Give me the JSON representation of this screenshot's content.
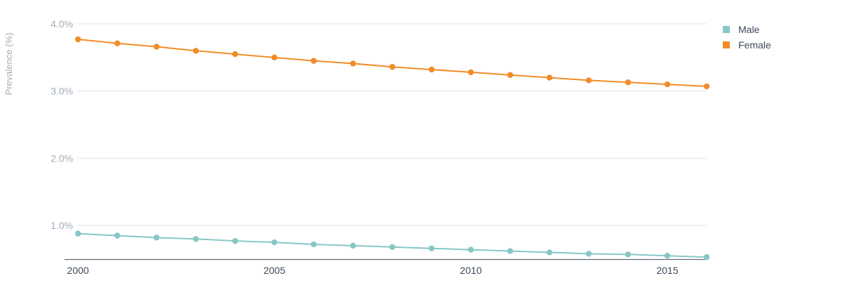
{
  "chart_data": {
    "type": "line",
    "ylabel": "Prevalence (%)",
    "ylim": [
      0.5,
      4.0
    ],
    "yticks": [
      {
        "value": 1.0,
        "label": "1.0%"
      },
      {
        "value": 2.0,
        "label": "2.0%"
      },
      {
        "value": 3.0,
        "label": "3.0%"
      },
      {
        "value": 4.0,
        "label": "4.0%"
      }
    ],
    "xlim": [
      2000,
      2016
    ],
    "xticks": [
      {
        "value": 2000,
        "label": "2000"
      },
      {
        "value": 2005,
        "label": "2005"
      },
      {
        "value": 2010,
        "label": "2010"
      },
      {
        "value": 2015,
        "label": "2015"
      }
    ],
    "grid": true,
    "legend_position": "top-right",
    "x": [
      2000,
      2001,
      2002,
      2003,
      2004,
      2005,
      2006,
      2007,
      2008,
      2009,
      2010,
      2011,
      2012,
      2013,
      2014,
      2015,
      2016
    ],
    "series": [
      {
        "name": "Male",
        "color": "#86c7c6",
        "values": [
          0.88,
          0.85,
          0.82,
          0.8,
          0.77,
          0.75,
          0.72,
          0.7,
          0.68,
          0.66,
          0.64,
          0.62,
          0.6,
          0.58,
          0.57,
          0.55,
          0.53
        ]
      },
      {
        "name": "Female",
        "color": "#f28c28",
        "values": [
          3.77,
          3.71,
          3.66,
          3.6,
          3.55,
          3.5,
          3.45,
          3.41,
          3.36,
          3.32,
          3.28,
          3.24,
          3.2,
          3.16,
          3.13,
          3.1,
          3.07
        ]
      }
    ]
  }
}
